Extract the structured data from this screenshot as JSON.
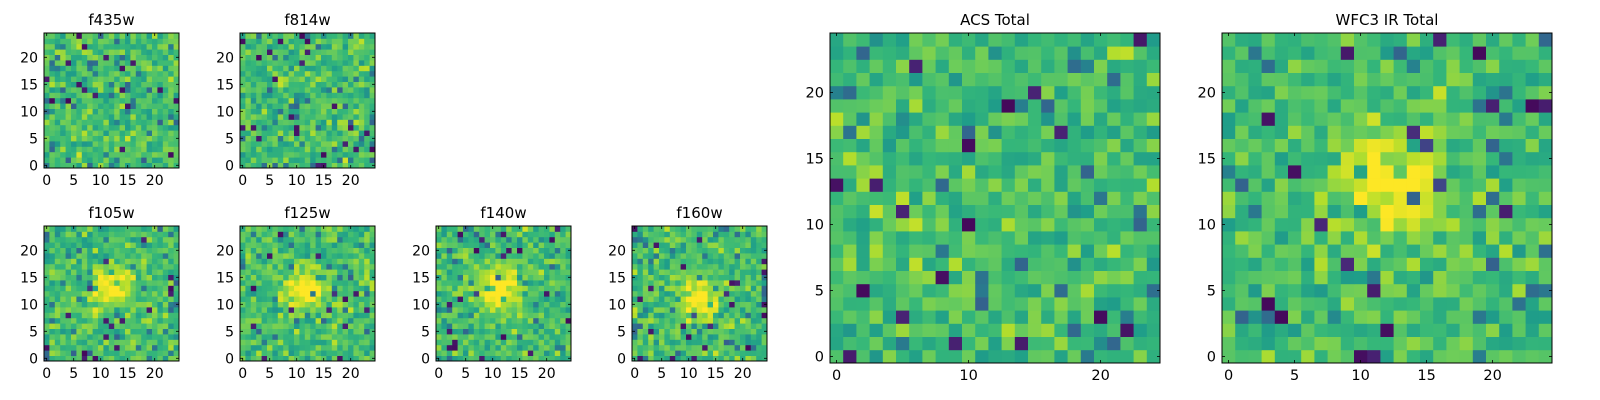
{
  "figure": {
    "background": "#ffffff",
    "colormap": "viridis"
  },
  "chart_data": [
    {
      "type": "heatmap",
      "title": "f435w",
      "xlim": [
        0,
        25
      ],
      "ylim": [
        0,
        25
      ],
      "xticks": [
        0,
        5,
        10,
        15,
        20
      ],
      "yticks": [
        0,
        5,
        10,
        15,
        20
      ],
      "grid": false,
      "pattern": "noise",
      "seed": 11
    },
    {
      "type": "heatmap",
      "title": "f814w",
      "xlim": [
        0,
        25
      ],
      "ylim": [
        0,
        25
      ],
      "xticks": [
        0,
        5,
        10,
        15,
        20
      ],
      "yticks": [
        0,
        5,
        10,
        15,
        20
      ],
      "grid": false,
      "pattern": "noise",
      "seed": 23
    },
    {
      "type": "heatmap",
      "title": "f105w",
      "xlim": [
        0,
        25
      ],
      "ylim": [
        0,
        25
      ],
      "xticks": [
        0,
        5,
        10,
        15,
        20
      ],
      "yticks": [
        0,
        5,
        10,
        15,
        20
      ],
      "grid": false,
      "pattern": "source",
      "seed": 37,
      "source_center": [
        12,
        13
      ]
    },
    {
      "type": "heatmap",
      "title": "f125w",
      "xlim": [
        0,
        25
      ],
      "ylim": [
        0,
        25
      ],
      "xticks": [
        0,
        5,
        10,
        15,
        20
      ],
      "yticks": [
        0,
        5,
        10,
        15,
        20
      ],
      "grid": false,
      "pattern": "source",
      "seed": 41,
      "source_center": [
        12,
        13
      ]
    },
    {
      "type": "heatmap",
      "title": "f140w",
      "xlim": [
        0,
        25
      ],
      "ylim": [
        0,
        25
      ],
      "xticks": [
        0,
        5,
        10,
        15,
        20
      ],
      "yticks": [
        0,
        5,
        10,
        15,
        20
      ],
      "grid": false,
      "pattern": "source",
      "seed": 53,
      "source_center": [
        11,
        13
      ]
    },
    {
      "type": "heatmap",
      "title": "f160w",
      "xlim": [
        0,
        25
      ],
      "ylim": [
        0,
        25
      ],
      "xticks": [
        0,
        5,
        10,
        15,
        20
      ],
      "yticks": [
        0,
        5,
        10,
        15,
        20
      ],
      "grid": false,
      "pattern": "source",
      "seed": 67,
      "source_center": [
        12,
        11
      ]
    },
    {
      "type": "heatmap",
      "title": "ACS Total",
      "xlim": [
        0,
        25
      ],
      "ylim": [
        0,
        25
      ],
      "xticks": [
        0,
        10,
        20
      ],
      "yticks": [
        0,
        5,
        10,
        15,
        20
      ],
      "grid": false,
      "pattern": "noise",
      "seed": 79
    },
    {
      "type": "heatmap",
      "title": "WFC3 IR Total",
      "xlim": [
        0,
        25
      ],
      "ylim": [
        0,
        25
      ],
      "xticks": [
        0,
        5,
        10,
        15,
        20
      ],
      "yticks": [
        0,
        5,
        10,
        15,
        20
      ],
      "grid": false,
      "pattern": "source",
      "seed": 83,
      "source_center": [
        12,
        13
      ]
    }
  ]
}
